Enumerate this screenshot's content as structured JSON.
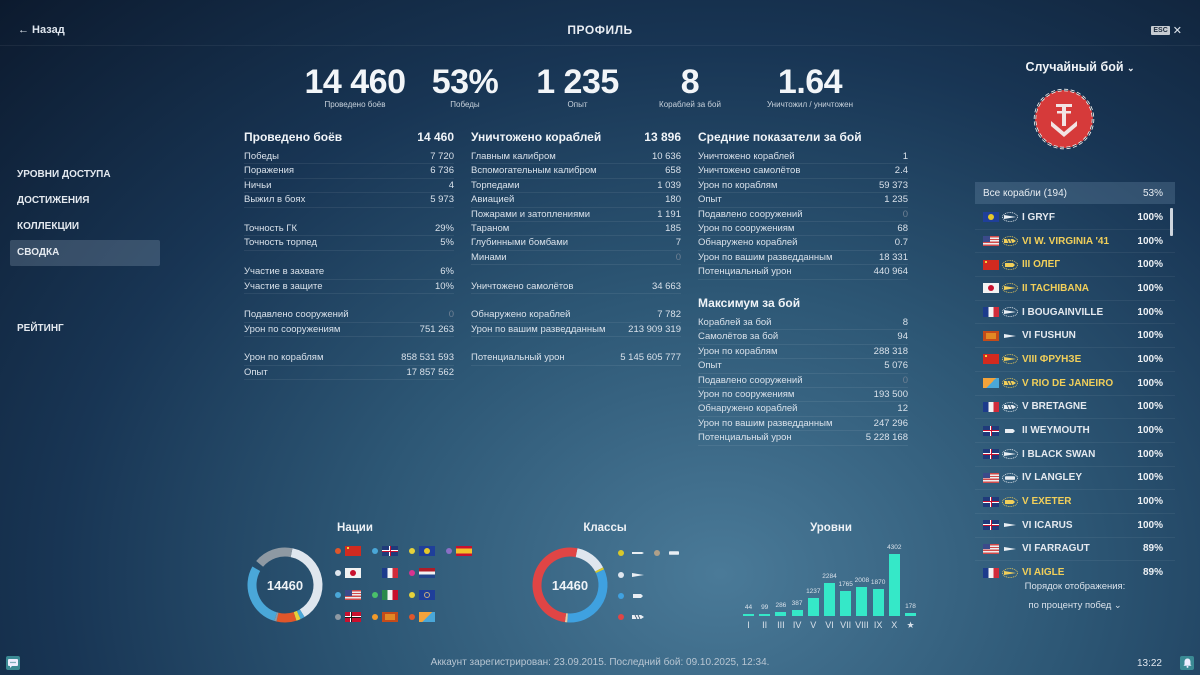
{
  "header": {
    "back_label": "← Назад",
    "title": "ПРОФИЛЬ",
    "esc_label": "ESC",
    "close_icon": "close-icon"
  },
  "sidebar": {
    "items": [
      {
        "label": "УРОВНИ ДОСТУПА"
      },
      {
        "label": "ДОСТИЖЕНИЯ"
      },
      {
        "label": "КОЛЛЕКЦИИ"
      },
      {
        "label": "СВОДКА",
        "active": true
      },
      {
        "label": "РЕЙТИНГ"
      }
    ]
  },
  "headline": [
    {
      "value": "14 460",
      "label": "Проведено боёв"
    },
    {
      "value": "53%",
      "label": "Победы"
    },
    {
      "value": "1 235",
      "label": "Опыт"
    },
    {
      "value": "8",
      "label": "Кораблей за бой"
    },
    {
      "value": "1.64",
      "label": "Уничтожил / уничтожен"
    }
  ],
  "battles": {
    "title": "Проведено боёв",
    "total": "14 460",
    "rows": [
      {
        "label": "Победы",
        "value": "7 720"
      },
      {
        "label": "Поражения",
        "value": "6 736"
      },
      {
        "label": "Ничьи",
        "value": "4"
      },
      {
        "label": "Выжил в боях",
        "value": "5 973"
      },
      null,
      {
        "label": "Точность ГК",
        "value": "29%"
      },
      {
        "label": "Точность торпед",
        "value": "5%"
      },
      null,
      {
        "label": "Участие в захвате",
        "value": "6%"
      },
      {
        "label": "Участие в защите",
        "value": "10%"
      },
      null,
      {
        "label": "Подавлено сооружений",
        "value": "0",
        "zero": true
      },
      {
        "label": "Урон по сооружениям",
        "value": "751 263"
      },
      null,
      {
        "label": "Урон по кораблям",
        "value": "858 531 593"
      },
      {
        "label": "Опыт",
        "value": "17 857 562"
      }
    ]
  },
  "destroyed": {
    "title": "Уничтожено кораблей",
    "total": "13 896",
    "rows": [
      {
        "label": "Главным калибром",
        "value": "10 636"
      },
      {
        "label": "Вспомогательным калибром",
        "value": "658"
      },
      {
        "label": "Торпедами",
        "value": "1 039"
      },
      {
        "label": "Авиацией",
        "value": "180"
      },
      {
        "label": "Пожарами и затоплениями",
        "value": "1 191"
      },
      {
        "label": "Тараном",
        "value": "185"
      },
      {
        "label": "Глубинными бомбами",
        "value": "7"
      },
      {
        "label": "Минами",
        "value": "0",
        "zero": true
      },
      null,
      {
        "label": "Уничтожено самолётов",
        "value": "34 663"
      },
      null,
      {
        "label": "Обнаружено кораблей",
        "value": "7 782"
      },
      {
        "label": "Урон по вашим разведданным",
        "value": "213 909 319"
      },
      null,
      {
        "label": "Потенциальный урон",
        "value": "5 145 605 777"
      }
    ]
  },
  "average": {
    "title": "Средние показатели за бой",
    "rows": [
      {
        "label": "Уничтожено кораблей",
        "value": "1"
      },
      {
        "label": "Уничтожено самолётов",
        "value": "2.4"
      },
      {
        "label": "Урон по кораблям",
        "value": "59 373"
      },
      {
        "label": "Опыт",
        "value": "1 235"
      },
      {
        "label": "Подавлено сооружений",
        "value": "0",
        "zero": true
      },
      {
        "label": "Урон по сооружениям",
        "value": "68"
      },
      {
        "label": "Обнаружено кораблей",
        "value": "0.7"
      },
      {
        "label": "Урон по вашим разведданным",
        "value": "18 331"
      },
      {
        "label": "Потенциальный урон",
        "value": "440 964"
      }
    ]
  },
  "maximum": {
    "title": "Максимум за бой",
    "rows": [
      {
        "label": "Кораблей за бой",
        "value": "8"
      },
      {
        "label": "Самолётов за бой",
        "value": "94"
      },
      {
        "label": "Урон по кораблям",
        "value": "288 318"
      },
      {
        "label": "Опыт",
        "value": "5 076"
      },
      {
        "label": "Подавлено сооружений",
        "value": "0",
        "zero": true
      },
      {
        "label": "Урон по сооружениям",
        "value": "193 500"
      },
      {
        "label": "Обнаружено кораблей",
        "value": "12"
      },
      {
        "label": "Урон по вашим разведданным",
        "value": "247 296"
      },
      {
        "label": "Потенциальный урон",
        "value": "5 228 168"
      }
    ]
  },
  "right_panel": {
    "mode": "Случайный бой",
    "all_ships_label": "Все корабли (194)",
    "all_ships_pct": "53%",
    "ships": [
      {
        "name": "I GRYF",
        "pct": "100%",
        "flag": "pan-europe",
        "cls": "destroyer",
        "premium": false
      },
      {
        "name": "VI W. VIRGINIA '41",
        "pct": "100%",
        "flag": "usa",
        "cls": "battleship",
        "premium": true
      },
      {
        "name": "III ОЛЕГ",
        "pct": "100%",
        "flag": "ussr",
        "cls": "cruiser",
        "premium": true
      },
      {
        "name": "II TACHIBANA",
        "pct": "100%",
        "flag": "japan",
        "cls": "destroyer",
        "premium": true
      },
      {
        "name": "I BOUGAINVILLE",
        "pct": "100%",
        "flag": "france",
        "cls": "destroyer",
        "premium": false
      },
      {
        "name": "VI FUSHUN",
        "pct": "100%",
        "flag": "pan-asia",
        "cls": "destroyer",
        "premium": false
      },
      {
        "name": "VIII ФРУНЗЕ",
        "pct": "100%",
        "flag": "ussr",
        "cls": "destroyer",
        "premium": true
      },
      {
        "name": "V RIO DE JANEIRO",
        "pct": "100%",
        "flag": "pan-america",
        "cls": "battleship",
        "premium": true
      },
      {
        "name": "V BRETAGNE",
        "pct": "100%",
        "flag": "france",
        "cls": "battleship",
        "premium": false
      },
      {
        "name": "II WEYMOUTH",
        "pct": "100%",
        "flag": "uk",
        "cls": "cruiser",
        "premium": false
      },
      {
        "name": "I BLACK SWAN",
        "pct": "100%",
        "flag": "uk",
        "cls": "destroyer",
        "premium": false
      },
      {
        "name": "IV LANGLEY",
        "pct": "100%",
        "flag": "usa",
        "cls": "carrier",
        "premium": false
      },
      {
        "name": "V EXETER",
        "pct": "100%",
        "flag": "uk",
        "cls": "cruiser",
        "premium": true
      },
      {
        "name": "VI ICARUS",
        "pct": "100%",
        "flag": "uk",
        "cls": "destroyer",
        "premium": false
      },
      {
        "name": "VI FARRAGUT",
        "pct": "89%",
        "flag": "usa",
        "cls": "destroyer",
        "premium": false
      },
      {
        "name": "VI AIGLE",
        "pct": "89%",
        "flag": "france",
        "cls": "destroyer",
        "premium": true
      }
    ],
    "sort_label": "Порядок отображения:",
    "sort_value": "по проценту побед"
  },
  "nations_chart": {
    "title": "Нации",
    "total": "14460",
    "legend": [
      {
        "flag": "ussr",
        "color": "#e0562a"
      },
      {
        "flag": "uk",
        "color": "#4aa7d8"
      },
      {
        "flag": "pan-europe",
        "color": "#e6d23a"
      },
      {
        "flag": "spain",
        "color": "#8b6fc6"
      },
      {
        "flag": "japan",
        "color": "#dfe6ee"
      },
      {
        "flag": "france",
        "color": "#1a2f4a"
      },
      {
        "flag": "netherlands",
        "color": "#d8338f"
      },
      {
        "flag": "usa",
        "color": "#4aa7d8"
      },
      {
        "flag": "italy",
        "color": "#4ac06a"
      },
      {
        "flag": "commonwealth",
        "color": "#e6d23a"
      },
      {
        "flag": "germany",
        "color": "#8e99a3"
      },
      {
        "flag": "pan-asia",
        "color": "#f19a2a"
      },
      {
        "flag": "pan-america",
        "color": "#e0562a"
      }
    ],
    "segments": [
      {
        "name": "uk",
        "value": 40,
        "color": "#dfe6ee"
      },
      {
        "name": "a",
        "value": 2,
        "color": "#4aa7d8"
      },
      {
        "name": "b",
        "value": 2,
        "color": "#e6d23a"
      },
      {
        "name": "ussr",
        "value": 9,
        "color": "#e0562a"
      },
      {
        "name": "c",
        "value": 1,
        "color": "#8e99a3"
      },
      {
        "name": "usa",
        "value": 30,
        "color": "#4aa7d8"
      },
      {
        "name": "gap",
        "value": 3,
        "color": "none"
      },
      {
        "name": "germany",
        "value": 18,
        "color": "#8e99a3"
      }
    ]
  },
  "classes_chart": {
    "title": "Классы",
    "total": "14460",
    "legend": [
      {
        "cls": "submarine",
        "color": "#d8c82a"
      },
      {
        "cls": "carrier",
        "color": "#b0a089"
      },
      {
        "cls": "destroyer",
        "color": "#dfe6ee"
      },
      {
        "cls": "cruiser",
        "color": "#3fa1e0"
      },
      {
        "cls": "battleship",
        "color": "#e04545"
      }
    ],
    "segments": [
      {
        "name": "destroyer",
        "value": 14,
        "color": "#dfe6ee"
      },
      {
        "name": "submarine",
        "value": 1,
        "color": "#d8c82a"
      },
      {
        "name": "cruiser",
        "value": 33,
        "color": "#3fa1e0"
      },
      {
        "name": "carrier",
        "value": 1,
        "color": "#e8c8a0"
      },
      {
        "name": "battleship",
        "value": 51,
        "color": "#e04545"
      }
    ]
  },
  "chart_data": {
    "type": "bar",
    "title": "Уровни",
    "categories": [
      "I",
      "II",
      "III",
      "IV",
      "V",
      "VI",
      "VII",
      "VIII",
      "IX",
      "X",
      "★"
    ],
    "values": [
      44,
      99,
      286,
      387,
      1237,
      2284,
      1765,
      2008,
      1870,
      4302,
      178
    ],
    "value_labels": [
      "44",
      "99",
      "286",
      "387",
      "1237",
      "2284",
      "1765",
      "2008",
      "1870",
      "4302",
      "178"
    ],
    "ylim": [
      0,
      4302
    ],
    "color": "#35e8c8"
  },
  "footer": {
    "registration": "Аккаунт зарегистрирован: 23.09.2015. Последний бой: 09.10.2025, 12:34.",
    "clock": "13:22"
  }
}
